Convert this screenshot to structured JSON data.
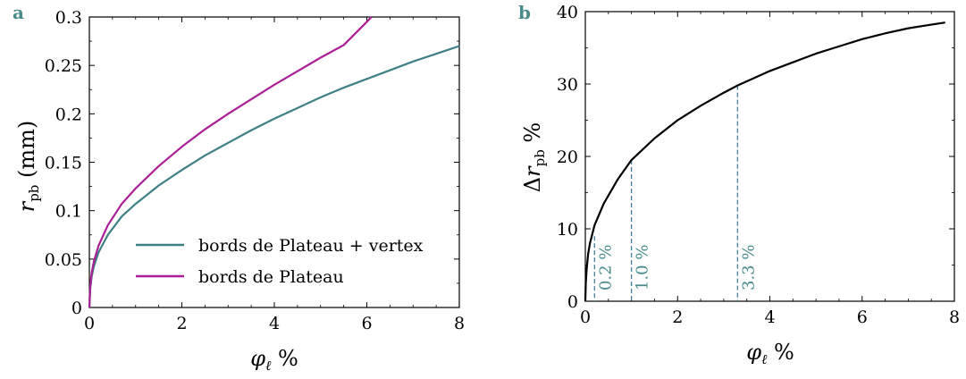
{
  "chart_data": [
    {
      "panel": "a",
      "type": "line",
      "xlabel": "φℓ %",
      "ylabel": "rpb (mm)",
      "xlim": [
        0,
        8
      ],
      "ylim": [
        0,
        0.3
      ],
      "xticks": [
        "0",
        "2",
        "4",
        "6",
        "8"
      ],
      "yticks": [
        "0",
        "0.05",
        "0.1",
        "0.15",
        "0.2",
        "0.25",
        "0.3"
      ],
      "legend_position": "bottom-right",
      "series": [
        {
          "name": "bords de Plateau + vertex",
          "color": "#3f7f86",
          "x": [
            0,
            0.02,
            0.05,
            0.1,
            0.2,
            0.4,
            0.7,
            1,
            1.5,
            2,
            2.5,
            3,
            3.5,
            4,
            4.5,
            5,
            5.5,
            6,
            6.5,
            7,
            7.5,
            8
          ],
          "y": [
            0,
            0.02,
            0.032,
            0.043,
            0.057,
            0.075,
            0.094,
            0.107,
            0.126,
            0.142,
            0.157,
            0.17,
            0.183,
            0.195,
            0.206,
            0.217,
            0.227,
            0.236,
            0.245,
            0.254,
            0.262,
            0.27
          ]
        },
        {
          "name": "bords de Plateau",
          "color": "#aa1f96",
          "x": [
            0,
            0.02,
            0.05,
            0.1,
            0.2,
            0.4,
            0.7,
            1,
            1.5,
            2,
            2.5,
            3,
            3.5,
            4,
            4.5,
            5,
            5.5,
            6,
            6.1
          ],
          "y": [
            0,
            0.022,
            0.036,
            0.048,
            0.064,
            0.085,
            0.107,
            0.123,
            0.146,
            0.166,
            0.184,
            0.2,
            0.215,
            0.23,
            0.244,
            0.258,
            0.271,
            0.295,
            0.3
          ]
        }
      ]
    },
    {
      "panel": "b",
      "type": "line",
      "xlabel": "φℓ %",
      "ylabel": "Δrpb %",
      "xlim": [
        0,
        8
      ],
      "ylim": [
        0,
        40
      ],
      "xticks": [
        "0",
        "2",
        "4",
        "6",
        "8"
      ],
      "yticks": [
        "0",
        "10",
        "20",
        "30",
        "40"
      ],
      "series": [
        {
          "color": "#000000",
          "x": [
            0,
            0.01,
            0.03,
            0.06,
            0.1,
            0.2,
            0.4,
            0.7,
            1,
            1.5,
            2,
            2.5,
            3,
            3.3,
            4,
            4.5,
            5,
            5.5,
            6,
            6.5,
            7,
            7.5,
            7.8
          ],
          "y": [
            0,
            2.5,
            4.5,
            6.5,
            8,
            10.5,
            13.5,
            16.8,
            19.5,
            22.5,
            25,
            27,
            28.8,
            29.8,
            31.8,
            33,
            34.2,
            35.2,
            36.2,
            37,
            37.7,
            38.2,
            38.5
          ]
        }
      ],
      "annotations": [
        {
          "x": 0.2,
          "y": 9,
          "label": "0.2 %"
        },
        {
          "x": 1.0,
          "y": 19.5,
          "label": "1.0 %"
        },
        {
          "x": 3.3,
          "y": 29.8,
          "label": "3.3 %"
        }
      ],
      "annotation_color": "#3f7f9a"
    }
  ]
}
